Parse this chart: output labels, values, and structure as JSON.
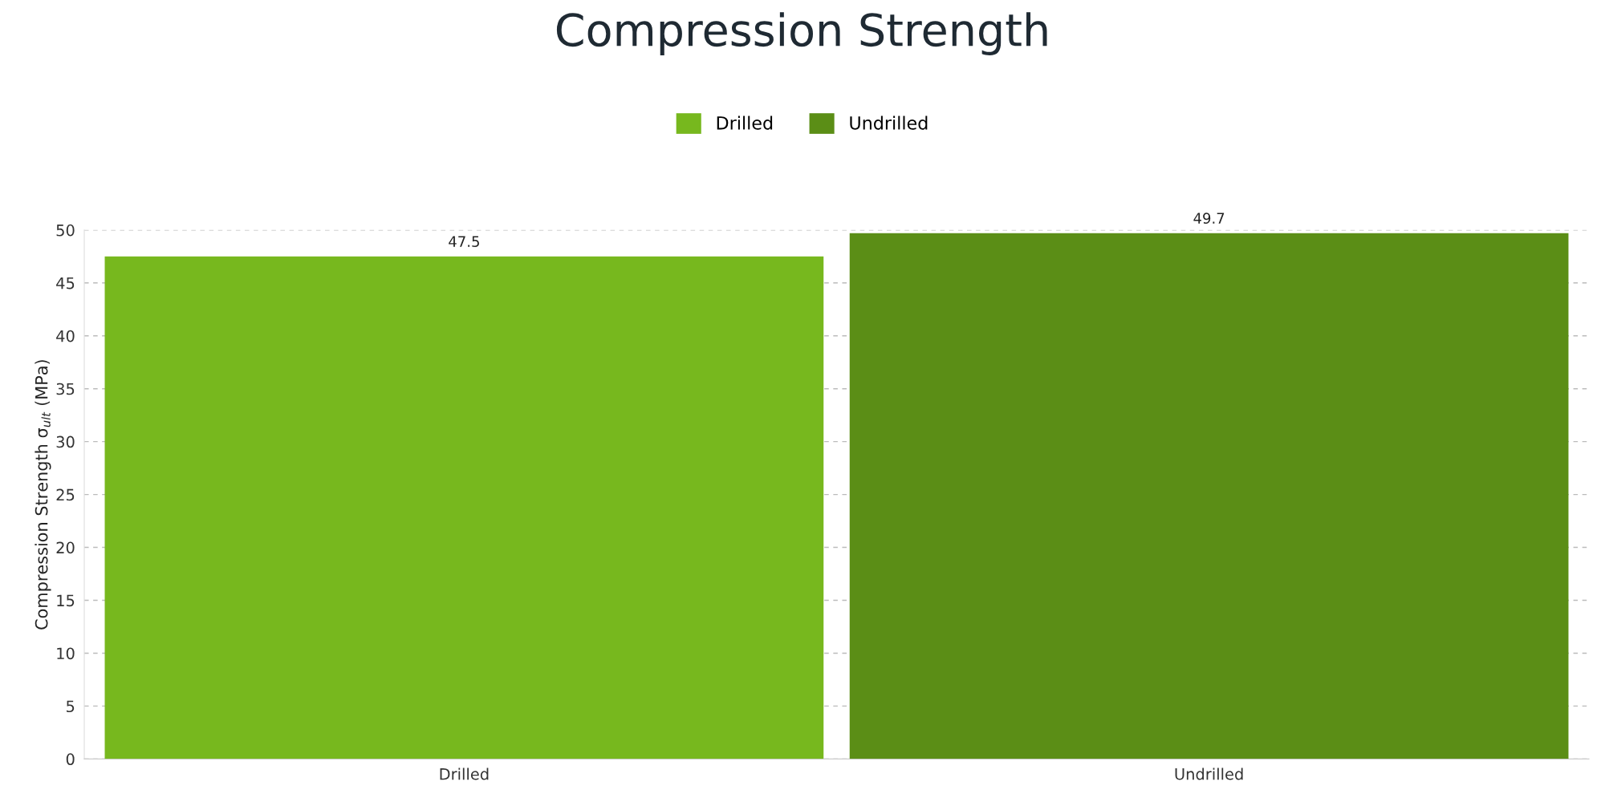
{
  "chart_data": {
    "type": "bar",
    "title": "Compression Strength",
    "ylabel": "Compression Strength σ$_{ult}$ (MPa)",
    "categories": [
      "Drilled",
      "Undrilled"
    ],
    "series": [
      {
        "name": "Drilled",
        "color": "#77b81e",
        "values": [
          47.5,
          null
        ]
      },
      {
        "name": "Undrilled",
        "color": "#5b8e16",
        "values": [
          null,
          49.7
        ]
      }
    ],
    "ylim": [
      0,
      50
    ],
    "yticks": [
      0,
      5,
      10,
      15,
      20,
      25,
      30,
      35,
      40,
      45,
      50
    ],
    "grid": "y",
    "legend": "top",
    "data_labels": true
  }
}
